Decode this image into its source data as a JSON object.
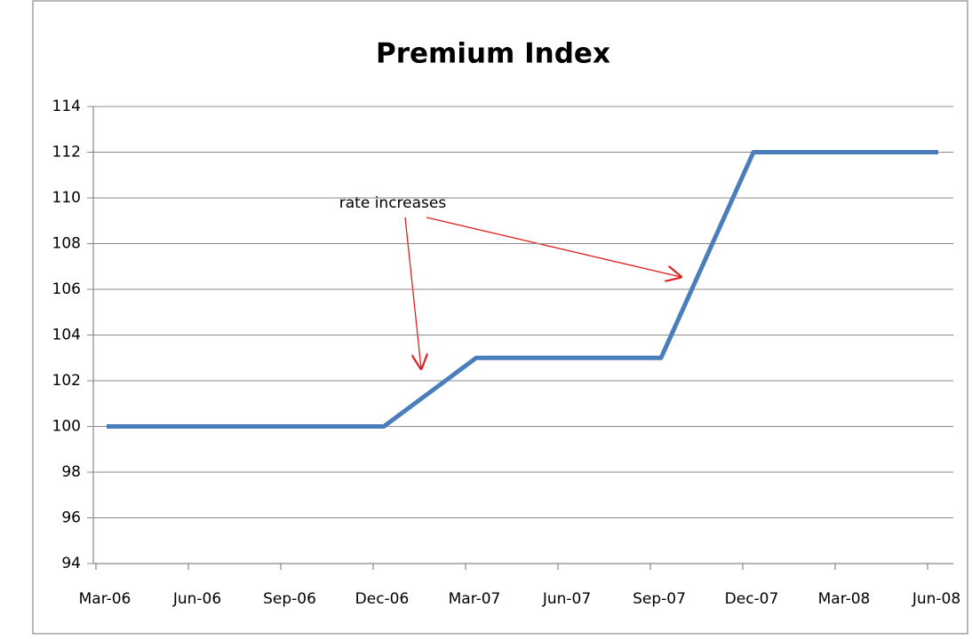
{
  "chart_data": {
    "type": "line",
    "title": "Premium Index",
    "categories": [
      "Mar-06",
      "Jun-06",
      "Sep-06",
      "Dec-06",
      "Mar-07",
      "Jun-07",
      "Sep-07",
      "Dec-07",
      "Mar-08",
      "Jun-08"
    ],
    "values": [
      100,
      100,
      100,
      100,
      103,
      103,
      103,
      112,
      112,
      112
    ],
    "color": "#4a7ebb",
    "ylim": [
      94,
      114
    ],
    "yticks": [
      94,
      96,
      98,
      100,
      102,
      104,
      106,
      108,
      110,
      112,
      114
    ],
    "grid": true,
    "annotation": "rate increases"
  }
}
